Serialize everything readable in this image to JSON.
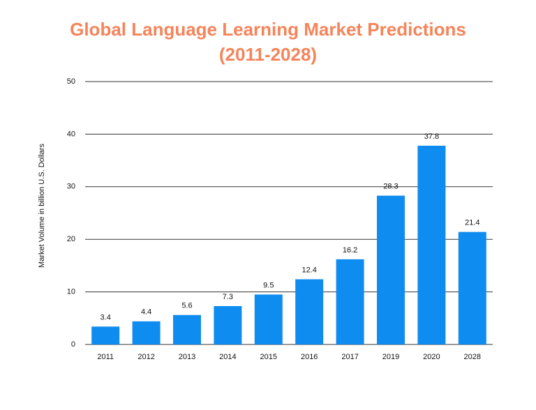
{
  "chart_data": {
    "type": "bar",
    "title": "Global Language Learning Market Predictions (2011-2028)",
    "y_label": "Market Volume in billion U.S. Dollars",
    "categories": [
      "2011",
      "2012",
      "2013",
      "2014",
      "2015",
      "2016",
      "2017",
      "2019",
      "2020",
      "2028"
    ],
    "values": [
      3.4,
      4.4,
      5.6,
      7.3,
      9.5,
      12.4,
      16.2,
      28.3,
      37.8,
      21.4
    ],
    "color": "#0f8cf0",
    "ylim": [
      0,
      50
    ],
    "yticks": [
      0,
      10,
      20,
      30,
      40,
      50
    ],
    "grid": true
  }
}
